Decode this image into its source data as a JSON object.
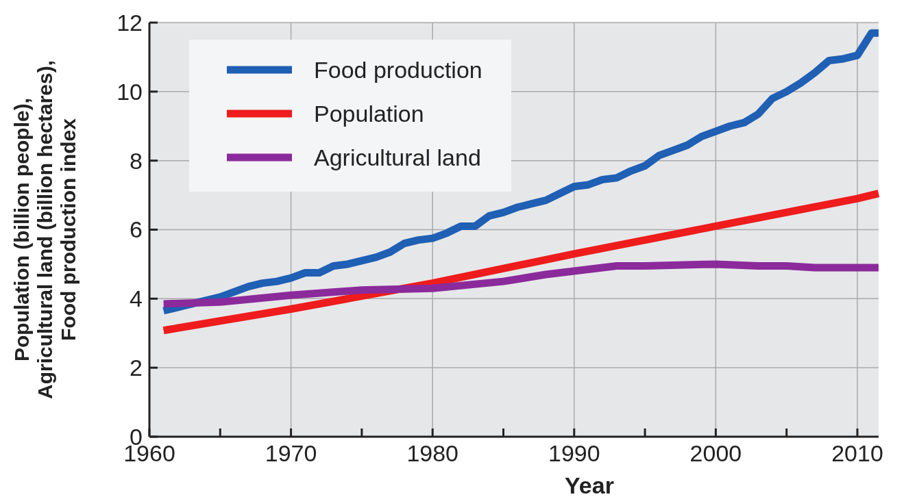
{
  "chart_data": {
    "type": "line",
    "xlabel": "Year",
    "ylabel": "Population (billion people),\nAgricultural land (billion hectares),\nFood production index",
    "xlim": [
      1960,
      2011.5
    ],
    "xticks": [
      1960,
      {
        "value": 1965,
        "label": null
      },
      1970,
      {
        "value": 1975,
        "label": null
      },
      1980,
      {
        "value": 1985,
        "label": null
      },
      1990,
      {
        "value": 1995,
        "label": null
      },
      2000,
      {
        "value": 2005,
        "label": null
      },
      2010
    ],
    "ylim": [
      0,
      12
    ],
    "yticks": [
      0,
      2,
      4,
      6,
      8,
      10,
      12
    ],
    "grid": true,
    "legend": "top left",
    "line_style": "solid",
    "marker": "none",
    "series": [
      {
        "name": "Food production",
        "color": "#1f5fb4",
        "x": [
          1961,
          1963,
          1965,
          1967,
          1968,
          1969,
          1970,
          1971,
          1972,
          1973,
          1974,
          1975,
          1976,
          1977,
          1978,
          1979,
          1980,
          1981,
          1982,
          1983,
          1984,
          1985,
          1986,
          1987,
          1988,
          1989,
          1990,
          1991,
          1992,
          1993,
          1994,
          1995,
          1996,
          1997,
          1998,
          1999,
          2000,
          2001,
          2002,
          2003,
          2004,
          2005,
          2006,
          2007,
          2008,
          2009,
          2010,
          2011,
          2011.5
        ],
        "values": [
          3.65,
          3.85,
          4.05,
          4.35,
          4.45,
          4.5,
          4.6,
          4.75,
          4.75,
          4.95,
          5.0,
          5.1,
          5.2,
          5.35,
          5.6,
          5.7,
          5.75,
          5.9,
          6.1,
          6.1,
          6.4,
          6.5,
          6.65,
          6.75,
          6.85,
          7.05,
          7.25,
          7.3,
          7.45,
          7.5,
          7.7,
          7.85,
          8.15,
          8.3,
          8.45,
          8.7,
          8.85,
          9.0,
          9.1,
          9.35,
          9.8,
          10.0,
          10.25,
          10.55,
          10.9,
          10.95,
          11.05,
          11.7,
          11.7
        ]
      },
      {
        "name": "Population",
        "color": "#ee1c1c",
        "x": [
          1961,
          1970,
          1980,
          1990,
          2000,
          2010,
          2011.5
        ],
        "values": [
          3.08,
          3.7,
          4.45,
          5.3,
          6.1,
          6.9,
          7.05
        ]
      },
      {
        "name": "Agricultural land",
        "color": "#8b2a9b",
        "x": [
          1961,
          1965,
          1970,
          1975,
          1980,
          1985,
          1988,
          1990,
          1993,
          1995,
          2000,
          2003,
          2005,
          2007,
          2010,
          2011.5
        ],
        "values": [
          3.85,
          3.9,
          4.1,
          4.25,
          4.3,
          4.5,
          4.7,
          4.8,
          4.95,
          4.95,
          5.0,
          4.95,
          4.95,
          4.9,
          4.9,
          4.9
        ]
      }
    ]
  }
}
